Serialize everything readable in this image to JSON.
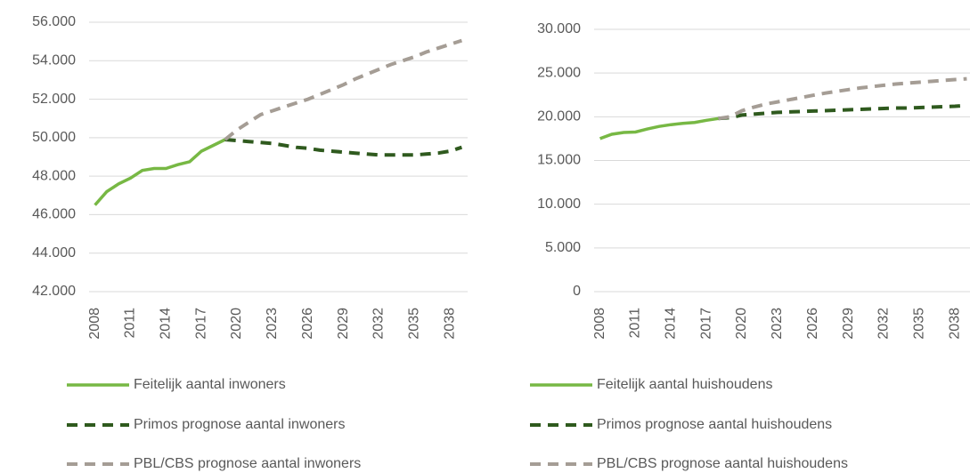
{
  "chart_data": [
    {
      "type": "line",
      "x": [
        2008,
        2009,
        2010,
        2011,
        2012,
        2013,
        2014,
        2015,
        2016,
        2017,
        2018,
        2019,
        2020,
        2021,
        2022,
        2023,
        2024,
        2025,
        2026,
        2027,
        2028,
        2029,
        2030,
        2031,
        2032,
        2033,
        2034,
        2035,
        2036,
        2037,
        2038,
        2039
      ],
      "xlim": [
        2007.5,
        2039.5
      ],
      "xticks": [
        2008,
        2011,
        2014,
        2017,
        2020,
        2023,
        2026,
        2029,
        2032,
        2035,
        2038
      ],
      "ylim": [
        42000,
        56000
      ],
      "yticks": [
        {
          "value": 42000,
          "label": "42.000"
        },
        {
          "value": 44000,
          "label": "44.000"
        },
        {
          "value": 46000,
          "label": "46.000"
        },
        {
          "value": 48000,
          "label": "48.000"
        },
        {
          "value": 50000,
          "label": "50.000"
        },
        {
          "value": 52000,
          "label": "52.000"
        },
        {
          "value": 54000,
          "label": "54.000"
        },
        {
          "value": 56000,
          "label": "56.000"
        }
      ],
      "grid": true,
      "series": [
        {
          "name": "Feitelijk aantal inwoners",
          "color": "#77b844",
          "dash": false,
          "values": [
            46500,
            47200,
            47600,
            47900,
            48300,
            48400,
            48400,
            48600,
            48750,
            49300,
            49600,
            49900,
            null,
            null,
            null,
            null,
            null,
            null,
            null,
            null,
            null,
            null,
            null,
            null,
            null,
            null,
            null,
            null,
            null,
            null,
            null,
            null
          ]
        },
        {
          "name": "Primos prognose aantal inwoners",
          "color": "#2f5a1e",
          "dash": true,
          "values": [
            null,
            null,
            null,
            null,
            null,
            null,
            null,
            null,
            null,
            null,
            null,
            49900,
            49850,
            49800,
            49750,
            49700,
            49600,
            49500,
            49450,
            49350,
            49300,
            49250,
            49200,
            49150,
            49100,
            49100,
            49100,
            49100,
            49150,
            49200,
            49300,
            49500
          ]
        },
        {
          "name": "PBL/CBS prognose aantal inwoners",
          "color": "#a59d95",
          "dash": true,
          "values": [
            null,
            null,
            null,
            null,
            null,
            null,
            null,
            null,
            null,
            null,
            null,
            49900,
            50400,
            50800,
            51200,
            51400,
            51600,
            51800,
            52000,
            52250,
            52500,
            52750,
            53050,
            53300,
            53550,
            53800,
            54000,
            54200,
            54450,
            54650,
            54850,
            55050
          ]
        }
      ]
    },
    {
      "type": "line",
      "x": [
        2008,
        2009,
        2010,
        2011,
        2012,
        2013,
        2014,
        2015,
        2016,
        2017,
        2018,
        2019,
        2020,
        2021,
        2022,
        2023,
        2024,
        2025,
        2026,
        2027,
        2028,
        2029,
        2030,
        2031,
        2032,
        2033,
        2034,
        2035,
        2036,
        2037,
        2038,
        2039
      ],
      "xlim": [
        2007.5,
        2039.5
      ],
      "xticks": [
        2008,
        2011,
        2014,
        2017,
        2020,
        2023,
        2026,
        2029,
        2032,
        2035,
        2038
      ],
      "ylim": [
        0,
        30000
      ],
      "yticks": [
        0,
        {
          "value": 5000,
          "label": "5.000"
        },
        {
          "value": 10000,
          "label": "10.000"
        },
        {
          "value": 15000,
          "label": "15.000"
        },
        {
          "value": 20000,
          "label": "20.000"
        },
        {
          "value": 25000,
          "label": "25.000"
        },
        {
          "value": 30000,
          "label": "30.000"
        }
      ],
      "grid": true,
      "series": [
        {
          "name": "Feitelijk aantal huishoudens",
          "color": "#77b844",
          "dash": false,
          "values": [
            17500,
            18000,
            18200,
            18250,
            18600,
            18900,
            19100,
            19250,
            19350,
            19600,
            19800,
            null,
            null,
            null,
            null,
            null,
            null,
            null,
            null,
            null,
            null,
            null,
            null,
            null,
            null,
            null,
            null,
            null,
            null,
            null,
            null,
            null
          ]
        },
        {
          "name": "Primos prognose aantal huishoudens",
          "color": "#2f5a1e",
          "dash": true,
          "values": [
            null,
            null,
            null,
            null,
            null,
            null,
            null,
            null,
            null,
            null,
            19800,
            19900,
            20200,
            20300,
            20400,
            20500,
            20550,
            20600,
            20650,
            20700,
            20750,
            20800,
            20850,
            20900,
            20950,
            21000,
            21000,
            21050,
            21100,
            21150,
            21200,
            21300
          ]
        },
        {
          "name": "PBL/CBS prognose aantal huishoudens",
          "color": "#a59d95",
          "dash": true,
          "values": [
            null,
            null,
            null,
            null,
            null,
            null,
            null,
            null,
            null,
            null,
            19800,
            20000,
            20700,
            21100,
            21450,
            21700,
            21950,
            22200,
            22450,
            22700,
            22900,
            23100,
            23300,
            23450,
            23600,
            23750,
            23850,
            23950,
            24050,
            24150,
            24250,
            24350
          ]
        }
      ]
    }
  ]
}
